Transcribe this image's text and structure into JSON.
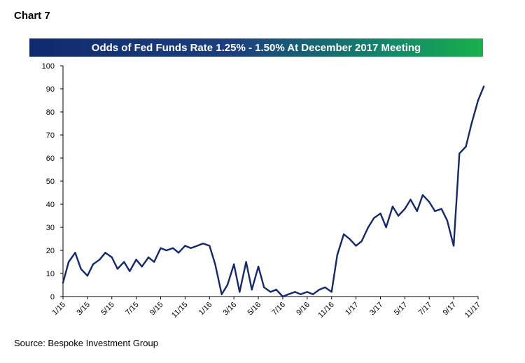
{
  "header": {
    "chart_label": "Chart 7"
  },
  "footer": {
    "source": "Source: Bespoke Investment Group"
  },
  "colors": {
    "line": "#14286e",
    "title_start": "#0f2a6e",
    "title_end": "#18b04a",
    "axis": "#000000"
  },
  "chart_data": {
    "type": "line",
    "title": "Odds of Fed Funds Rate 1.25% - 1.50% At December 2017 Meeting",
    "xlabel": "",
    "ylabel": "",
    "ylim": [
      0,
      100
    ],
    "yticks": [
      0,
      10,
      20,
      30,
      40,
      50,
      60,
      70,
      80,
      90,
      100
    ],
    "xlim": [
      "2015-01",
      "2017-11"
    ],
    "xticks": [
      "1/15",
      "3/15",
      "5/15",
      "7/15",
      "9/15",
      "11/15",
      "1/16",
      "3/16",
      "5/16",
      "7/16",
      "9/16",
      "11/16",
      "1/17",
      "3/17",
      "5/17",
      "7/17",
      "9/17",
      "11/17"
    ],
    "grid": false,
    "series": [
      {
        "x": [
          "2015-01-01",
          "2015-01-15",
          "2015-02-01",
          "2015-02-15",
          "2015-03-01",
          "2015-03-15",
          "2015-04-01",
          "2015-04-15",
          "2015-05-01",
          "2015-05-15",
          "2015-06-01",
          "2015-06-15",
          "2015-07-01",
          "2015-07-15",
          "2015-08-01",
          "2015-08-15",
          "2015-09-01",
          "2015-09-15",
          "2015-10-01",
          "2015-10-15",
          "2015-11-01",
          "2015-11-15",
          "2015-12-01",
          "2015-12-15",
          "2016-01-01",
          "2016-01-15",
          "2016-02-01",
          "2016-02-15",
          "2016-03-01",
          "2016-03-15",
          "2016-04-01",
          "2016-04-15",
          "2016-05-01",
          "2016-05-15",
          "2016-06-01",
          "2016-06-15",
          "2016-07-01",
          "2016-07-15",
          "2016-08-01",
          "2016-08-15",
          "2016-09-01",
          "2016-09-15",
          "2016-10-01",
          "2016-10-15",
          "2016-11-01",
          "2016-11-15",
          "2016-12-01",
          "2016-12-15",
          "2017-01-01",
          "2017-01-15",
          "2017-02-01",
          "2017-02-15",
          "2017-03-01",
          "2017-03-15",
          "2017-04-01",
          "2017-04-15",
          "2017-05-01",
          "2017-05-15",
          "2017-06-01",
          "2017-06-15",
          "2017-07-01",
          "2017-07-15",
          "2017-08-01",
          "2017-08-15",
          "2017-09-01",
          "2017-09-15",
          "2017-10-01",
          "2017-10-15",
          "2017-11-01",
          "2017-11-15"
        ],
        "values": [
          6,
          15,
          19,
          12,
          9,
          14,
          16,
          19,
          17,
          12,
          15,
          11,
          16,
          13,
          17,
          15,
          21,
          20,
          21,
          19,
          22,
          21,
          22,
          23,
          22,
          14,
          1,
          5,
          14,
          2,
          15,
          3,
          13,
          4,
          2,
          3,
          0,
          1,
          2,
          1,
          2,
          1,
          3,
          4,
          2,
          18,
          27,
          25,
          22,
          24,
          30,
          34,
          36,
          30,
          39,
          35,
          38,
          42,
          37,
          44,
          41,
          37,
          38,
          33,
          22,
          62,
          65,
          75,
          85,
          91
        ]
      }
    ]
  }
}
